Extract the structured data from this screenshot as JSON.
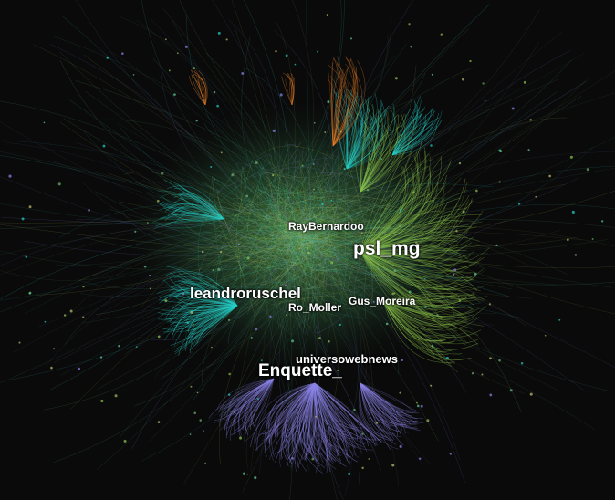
{
  "colors": {
    "background": "#0a0a0a",
    "green_cluster": "#8bc34a",
    "cyan_cluster": "#26d0c8",
    "purple_cluster": "#8c84e8",
    "orange_cluster": "#e87f2a",
    "label": "#ffffff"
  },
  "labels": {
    "psl_mg": "psl_mg",
    "enquette": "Enquette_",
    "leandroruschel": "leandroruschel",
    "raybernardoo": "RayBernardoo",
    "gus_moreira": "Gus_Moreira",
    "ro_moller": "Ro_Moller",
    "universowebnews": "universowebnews"
  }
}
